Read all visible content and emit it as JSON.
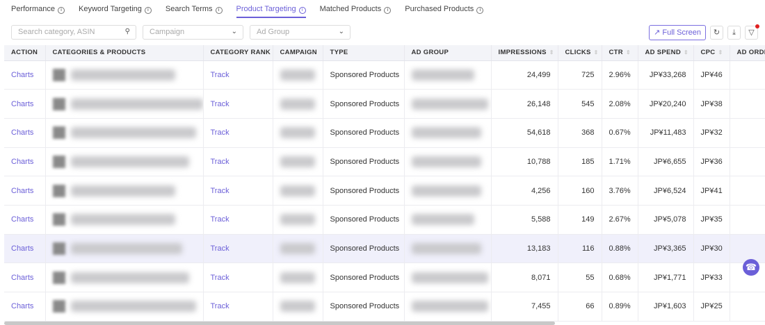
{
  "tabs": [
    {
      "label": "Performance"
    },
    {
      "label": "Keyword Targeting"
    },
    {
      "label": "Search Terms"
    },
    {
      "label": "Product Targeting",
      "active": true
    },
    {
      "label": "Matched Products"
    },
    {
      "label": "Purchased Products"
    }
  ],
  "filters": {
    "search_placeholder": "Search category, ASIN",
    "campaign_placeholder": "Campaign",
    "adgroup_placeholder": "Ad Group"
  },
  "toolbar": {
    "fullscreen_label": "Full Screen",
    "refresh_icon": "refresh-icon",
    "download_icon": "download-icon",
    "filter_icon": "filter-icon"
  },
  "colors": {
    "accent": "#6b5fd8",
    "highlight_row": "#f0f0fb"
  },
  "columns": [
    "ACTION",
    "CATEGORIES & PRODUCTS",
    "CATEGORY RANK",
    "CAMPAIGN",
    "TYPE",
    "AD GROUP",
    "IMPRESSIONS",
    "CLICKS",
    "CTR",
    "AD SPEND",
    "CPC",
    "AD ORDE"
  ],
  "rows": [
    {
      "action": "Charts",
      "rank": "Track",
      "type": "Sponsored Products",
      "impressions": "24,499",
      "clicks": "725",
      "ctr": "2.96%",
      "spend": "JP¥33,268",
      "cpc": "JP¥46"
    },
    {
      "action": "Charts",
      "rank": "Track",
      "type": "Sponsored Products",
      "impressions": "26,148",
      "clicks": "545",
      "ctr": "2.08%",
      "spend": "JP¥20,240",
      "cpc": "JP¥38"
    },
    {
      "action": "Charts",
      "rank": "Track",
      "type": "Sponsored Products",
      "impressions": "54,618",
      "clicks": "368",
      "ctr": "0.67%",
      "spend": "JP¥11,483",
      "cpc": "JP¥32"
    },
    {
      "action": "Charts",
      "rank": "Track",
      "type": "Sponsored Products",
      "impressions": "10,788",
      "clicks": "185",
      "ctr": "1.71%",
      "spend": "JP¥6,655",
      "cpc": "JP¥36"
    },
    {
      "action": "Charts",
      "rank": "Track",
      "type": "Sponsored Products",
      "impressions": "4,256",
      "clicks": "160",
      "ctr": "3.76%",
      "spend": "JP¥6,524",
      "cpc": "JP¥41"
    },
    {
      "action": "Charts",
      "rank": "Track",
      "type": "Sponsored Products",
      "impressions": "5,588",
      "clicks": "149",
      "ctr": "2.67%",
      "spend": "JP¥5,078",
      "cpc": "JP¥35"
    },
    {
      "action": "Charts",
      "rank": "Track",
      "type": "Sponsored Products",
      "impressions": "13,183",
      "clicks": "116",
      "ctr": "0.88%",
      "spend": "JP¥3,365",
      "cpc": "JP¥30",
      "highlighted": true
    },
    {
      "action": "Charts",
      "rank": "Track",
      "type": "Sponsored Products",
      "impressions": "8,071",
      "clicks": "55",
      "ctr": "0.68%",
      "spend": "JP¥1,771",
      "cpc": "JP¥33"
    },
    {
      "action": "Charts",
      "rank": "Track",
      "type": "Sponsored Products",
      "impressions": "7,455",
      "clicks": "66",
      "ctr": "0.89%",
      "spend": "JP¥1,603",
      "cpc": "JP¥25"
    }
  ]
}
